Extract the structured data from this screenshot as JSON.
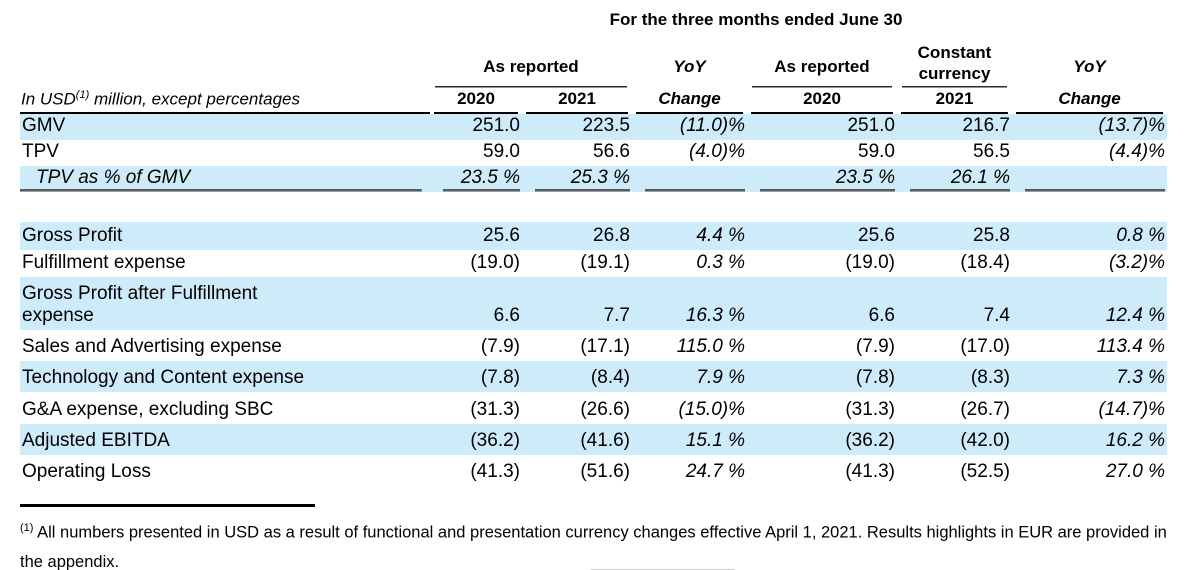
{
  "title": "For the three months ended June 30",
  "table": {
    "groups": [
      {
        "label": "As reported"
      },
      {
        "label": "YoY"
      },
      {
        "label": "As reported"
      },
      {
        "label": "Constant currency"
      },
      {
        "label": "YoY"
      }
    ],
    "unit_header": {
      "prefix": "In USD",
      "sup": "(1)",
      "suffix": " million, except percentages"
    },
    "columns": [
      "2020",
      "2021",
      "Change",
      "2020",
      "2021",
      "Change"
    ],
    "rows": [
      {
        "label": "GMV",
        "values": [
          "251.0",
          "223.5",
          "(11.0)%",
          "251.0",
          "216.7",
          "(13.7)%"
        ],
        "highlight": true,
        "h": 26
      },
      {
        "label": "TPV",
        "values": [
          "59.0",
          "56.6",
          "(4.0)%",
          "59.0",
          "56.5",
          "(4.4)%"
        ],
        "h": 26
      },
      {
        "label": "TPV as % of GMV",
        "values": [
          "23.5 %",
          "25.3 %",
          "",
          "23.5 %",
          "26.1 %",
          ""
        ],
        "highlight": true,
        "italic": true,
        "indent": true,
        "rule_below": true,
        "h": 26
      },
      {
        "spacer": true,
        "h": 30
      },
      {
        "label": "Gross Profit",
        "values": [
          "25.6",
          "26.8",
          "4.4 %",
          "25.6",
          "25.8",
          "0.8 %"
        ],
        "highlight": true,
        "h": 28
      },
      {
        "label": "Fulfillment expense",
        "values": [
          "(19.0)",
          "(19.1)",
          "0.3 %",
          "(19.0)",
          "(18.4)",
          "(3.2)%"
        ],
        "h": 27
      },
      {
        "label": "Gross Profit after Fulfillment",
        "label2": "expense",
        "values": [
          "6.6",
          "7.7",
          "16.3 %",
          "6.6",
          "7.4",
          "12.4 %"
        ],
        "highlight": true,
        "h": 53
      },
      {
        "label": "Sales and Advertising expense",
        "values": [
          "(7.9)",
          "(17.1)",
          "115.0 %",
          "(7.9)",
          "(17.0)",
          "113.4 %"
        ],
        "h": 31
      },
      {
        "label": "Technology and Content expense",
        "values": [
          "(7.8)",
          "(8.4)",
          "7.9 %",
          "(7.8)",
          "(8.3)",
          "7.3 %"
        ],
        "highlight": true,
        "h": 31
      },
      {
        "label": "G&A expense, excluding SBC",
        "values": [
          "(31.3)",
          "(26.6)",
          "(15.0)%",
          "(31.3)",
          "(26.7)",
          "(14.7)%"
        ],
        "h": 32
      },
      {
        "label": "Adjusted EBITDA",
        "values": [
          "(36.2)",
          "(41.6)",
          "15.1 %",
          "(36.2)",
          "(42.0)",
          "16.2 %"
        ],
        "highlight": true,
        "h": 31
      },
      {
        "label": "Operating Loss",
        "values": [
          "(41.3)",
          "(51.6)",
          "24.7 %",
          "(41.3)",
          "(52.5)",
          "27.0 %"
        ],
        "h": 31
      }
    ]
  },
  "footnote": {
    "sup": "(1)",
    "text": " All numbers presented in USD as a result of functional and presentation currency changes effective April 1, 2021. Results highlights in EUR are provided in the appendix."
  },
  "colors": {
    "highlight_blue": "#CEEBFA",
    "rule_gray": "#5a5a5a",
    "header_line_black": "#000000"
  }
}
